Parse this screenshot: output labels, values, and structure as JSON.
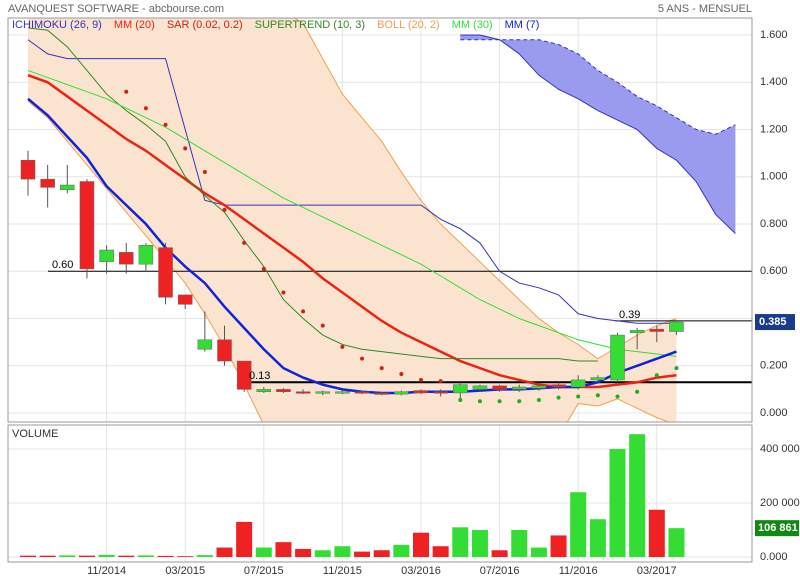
{
  "header": {
    "title": "AVANQUEST SOFTWARE - abcbourse.com",
    "period": "5 ANS - MENSUEL"
  },
  "chart_data": [
    {
      "type": "candlestick",
      "categories": [
        null,
        null,
        null,
        null,
        "11/2014",
        null,
        null,
        null,
        "03/2015",
        null,
        null,
        null,
        "07/2015",
        null,
        null,
        null,
        "11/2015",
        null,
        null,
        null,
        "03/2016",
        null,
        null,
        null,
        "07/2016",
        null,
        null,
        null,
        "11/2016",
        null,
        null,
        null,
        "03/2017",
        null,
        null,
        null,
        null
      ],
      "open": [
        1.07,
        0.99,
        0.945,
        0.98,
        0.64,
        0.68,
        0.63,
        0.7,
        0.5,
        0.27,
        0.31,
        0.22,
        0.09,
        0.1,
        0.09,
        0.085,
        0.085,
        0.09,
        0.085,
        0.08,
        0.095,
        0.09,
        0.085,
        0.1,
        0.115,
        0.1,
        0.105,
        0.12,
        0.11,
        0.14,
        0.14,
        0.34,
        0.355,
        0.345,
        null,
        null,
        null
      ],
      "high": [
        1.11,
        1.05,
        1.05,
        0.99,
        0.71,
        0.72,
        0.72,
        0.72,
        0.5,
        0.43,
        0.37,
        0.22,
        0.11,
        0.105,
        0.1,
        0.095,
        0.095,
        0.095,
        0.09,
        0.095,
        0.1,
        0.1,
        0.13,
        0.12,
        0.12,
        0.12,
        0.12,
        0.13,
        0.16,
        0.16,
        0.34,
        0.36,
        0.37,
        0.39,
        null,
        null,
        null
      ],
      "low": [
        0.92,
        0.87,
        0.93,
        0.57,
        0.59,
        0.59,
        0.6,
        0.46,
        0.44,
        0.26,
        0.2,
        0.09,
        0.085,
        0.085,
        0.08,
        0.075,
        0.08,
        0.08,
        0.075,
        0.075,
        0.08,
        0.07,
        0.06,
        0.09,
        0.09,
        0.09,
        0.095,
        0.1,
        0.1,
        0.13,
        0.13,
        0.27,
        0.3,
        0.33,
        null,
        null,
        null
      ],
      "close": [
        0.99,
        0.955,
        0.965,
        0.61,
        0.69,
        0.63,
        0.71,
        0.49,
        0.46,
        0.31,
        0.22,
        0.1,
        0.1,
        0.09,
        0.085,
        0.09,
        0.09,
        0.085,
        0.08,
        0.09,
        0.085,
        0.085,
        0.12,
        0.115,
        0.1,
        0.11,
        0.115,
        0.11,
        0.14,
        0.15,
        0.33,
        0.35,
        0.345,
        0.385,
        null,
        null,
        null
      ],
      "up_color": "#33dd33",
      "down_color": "#ee2222",
      "series": [
        {
          "name": "ICHIMOKU (26, 9)",
          "color": "#3333bb",
          "cloud_color": "#9a9aee",
          "values": [
            1.58,
            1.52,
            1.5,
            1.5,
            1.5,
            1.5,
            1.5,
            1.5,
            1.2,
            0.9,
            0.88,
            0.88,
            0.88,
            0.88,
            0.88,
            0.88,
            0.88,
            0.88,
            0.88,
            0.88,
            0.88,
            0.82,
            0.78,
            0.72,
            0.6,
            0.55,
            0.53,
            0.5,
            0.42,
            0.4,
            0.39,
            0.38,
            0.38,
            0.38,
            null,
            null,
            null
          ],
          "span_a": [
            null,
            null,
            null,
            null,
            null,
            null,
            null,
            null,
            null,
            null,
            null,
            null,
            null,
            null,
            null,
            null,
            null,
            null,
            null,
            null,
            null,
            null,
            1.58,
            1.58,
            1.58,
            1.58,
            1.58,
            1.56,
            1.52,
            1.45,
            1.4,
            1.34,
            1.3,
            1.25,
            1.2,
            1.18,
            1.22
          ],
          "span_b": [
            null,
            null,
            null,
            null,
            null,
            null,
            null,
            null,
            null,
            null,
            null,
            null,
            null,
            null,
            null,
            null,
            null,
            null,
            null,
            null,
            null,
            null,
            1.6,
            1.6,
            1.58,
            1.52,
            1.43,
            1.37,
            1.33,
            1.28,
            1.24,
            1.2,
            1.12,
            1.07,
            0.98,
            0.84,
            0.76
          ]
        },
        {
          "name": "MM (20)",
          "color": "#ee2211",
          "width": 2.5,
          "values": [
            1.43,
            1.4,
            1.34,
            1.28,
            1.22,
            1.16,
            1.11,
            1.05,
            0.99,
            0.93,
            0.88,
            0.82,
            0.76,
            0.7,
            0.64,
            0.57,
            0.51,
            0.45,
            0.39,
            0.34,
            0.3,
            0.26,
            0.22,
            0.19,
            0.16,
            0.14,
            0.12,
            0.11,
            0.11,
            0.11,
            0.12,
            0.13,
            0.15,
            0.16,
            null,
            null,
            null
          ]
        },
        {
          "name": "SAR (0.02, 0.2)",
          "color": "#cc2211",
          "below_color": "#22aa22",
          "style": "dots",
          "values": [
            null,
            null,
            null,
            null,
            null,
            1.36,
            1.29,
            1.22,
            1.12,
            1.02,
            0.86,
            0.72,
            0.61,
            0.51,
            0.43,
            0.37,
            0.28,
            0.23,
            0.19,
            0.165,
            0.14,
            0.135,
            0.055,
            0.05,
            0.05,
            0.05,
            0.055,
            0.065,
            0.07,
            0.075,
            0.07,
            0.09,
            0.16,
            0.19,
            null,
            null,
            null
          ]
        },
        {
          "name": "SUPERTREND (10, 3)",
          "color": "#338822",
          "values": [
            1.63,
            1.62,
            1.55,
            1.45,
            1.35,
            1.28,
            1.22,
            1.15,
            1.0,
            0.92,
            0.85,
            0.73,
            0.62,
            0.48,
            0.4,
            0.33,
            0.29,
            0.27,
            0.26,
            0.25,
            0.24,
            0.23,
            0.23,
            0.23,
            0.23,
            0.23,
            0.23,
            0.23,
            0.22,
            0.22,
            null,
            null,
            null,
            null,
            null,
            null,
            null
          ]
        },
        {
          "name": "BOLL (20, 2)",
          "color": "#f0a050",
          "fill": "#fbe4cf",
          "style": "band",
          "upper": [
            1.95,
            1.95,
            1.92,
            1.9,
            1.88,
            1.86,
            1.84,
            1.82,
            1.8,
            1.78,
            1.76,
            1.74,
            1.72,
            1.7,
            1.65,
            1.5,
            1.35,
            1.25,
            1.15,
            1.02,
            0.9,
            0.8,
            0.72,
            0.64,
            0.56,
            0.48,
            0.4,
            0.34,
            0.29,
            0.23,
            0.28,
            0.33,
            0.37,
            0.4,
            null,
            null,
            null
          ],
          "lower": [
            1.32,
            1.25,
            1.15,
            1.05,
            0.95,
            0.85,
            0.75,
            0.65,
            0.55,
            0.42,
            0.28,
            0.12,
            -0.05,
            -0.1,
            -0.1,
            -0.1,
            -0.1,
            -0.1,
            -0.1,
            -0.1,
            -0.1,
            -0.1,
            -0.1,
            -0.1,
            -0.1,
            -0.1,
            -0.1,
            -0.1,
            0.04,
            0.03,
            0.06,
            0.02,
            -0.02,
            -0.05,
            null,
            null,
            null
          ]
        },
        {
          "name": "MM (30)",
          "color": "#33dd33",
          "values": [
            1.45,
            1.42,
            1.39,
            1.36,
            1.33,
            1.29,
            1.25,
            1.21,
            1.16,
            1.11,
            1.06,
            1.01,
            0.96,
            0.91,
            0.87,
            0.83,
            0.79,
            0.75,
            0.71,
            0.67,
            0.63,
            0.58,
            0.53,
            0.48,
            0.44,
            0.4,
            0.37,
            0.34,
            0.31,
            0.29,
            0.27,
            0.26,
            0.25,
            0.24,
            null,
            null,
            null
          ]
        },
        {
          "name": "MM (7)",
          "color": "#1122dd",
          "width": 2.5,
          "values": [
            1.33,
            1.26,
            1.17,
            1.08,
            0.96,
            0.88,
            0.8,
            0.7,
            0.62,
            0.55,
            0.45,
            0.36,
            0.27,
            0.19,
            0.15,
            0.12,
            0.1,
            0.09,
            0.085,
            0.085,
            0.09,
            0.09,
            0.09,
            0.095,
            0.1,
            0.1,
            0.105,
            0.11,
            0.11,
            0.13,
            0.17,
            0.2,
            0.23,
            0.26,
            null,
            null,
            null
          ]
        }
      ],
      "levels": [
        {
          "value": 0.6,
          "label": "0.60"
        },
        {
          "value": 0.13,
          "label": "0.13"
        },
        {
          "value": 0.39,
          "label": "0.39"
        }
      ],
      "last_price": 0.385,
      "ylim": [
        -0.038,
        1.672
      ],
      "yticks": [
        {
          "value": 0,
          "label": "0.000"
        },
        {
          "value": 0.2,
          "label": "0.200"
        },
        {
          "value": 0.4,
          "label": "0.400"
        },
        {
          "value": 0.6,
          "label": "0.600"
        },
        {
          "value": 0.8,
          "label": "0.800"
        },
        {
          "value": 1.0,
          "label": "1.000"
        },
        {
          "value": 1.2,
          "label": "1.200"
        },
        {
          "value": 1.4,
          "label": "1.400"
        },
        {
          "value": 1.6,
          "label": "1.600"
        }
      ],
      "grid": true
    },
    {
      "type": "bar",
      "title": "VOLUME",
      "values": [
        5000,
        5000,
        6000,
        5000,
        8000,
        5000,
        6000,
        4000,
        3000,
        7000,
        35000,
        130000,
        35000,
        55000,
        30000,
        25000,
        40000,
        20000,
        25000,
        45000,
        90000,
        40000,
        110000,
        100000,
        25000,
        100000,
        35000,
        80000,
        240000,
        140000,
        400000,
        455000,
        175000,
        106861,
        null,
        null,
        null
      ],
      "last_label": {
        "value": 106861,
        "label": "106 861"
      },
      "ylim": [
        -18500,
        489000
      ],
      "yticks": [
        {
          "value": 0,
          "label": "0.000"
        },
        {
          "value": 200000,
          "label": "200 000"
        },
        {
          "value": 400000,
          "label": "400 000"
        }
      ],
      "grid": true
    }
  ]
}
